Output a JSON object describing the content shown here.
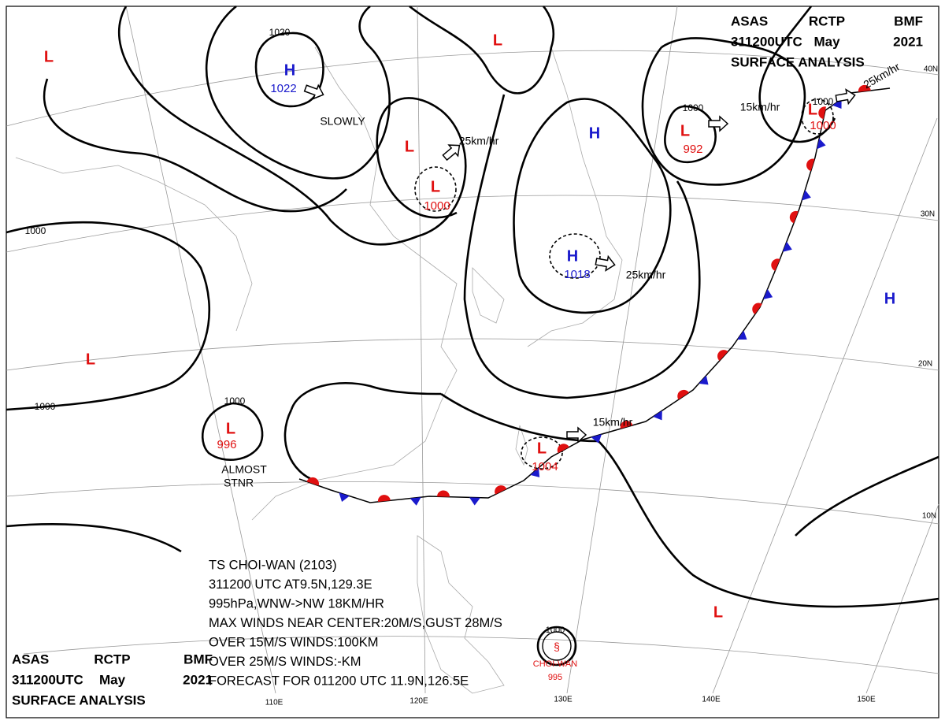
{
  "header_top": [
    [
      "ASAS",
      "RCTP",
      "BMF"
    ],
    [
      "311200UTC",
      "May",
      "2021"
    ],
    [
      "SURFACE ANALYSIS"
    ]
  ],
  "header_bottom": [
    [
      "ASAS",
      "RCTP",
      "BMF"
    ],
    [
      "311200UTC",
      "May",
      "2021"
    ],
    [
      "SURFACE ANALYSIS"
    ]
  ],
  "pressure_centers": [
    {
      "type": "H",
      "pressure": 1022
    },
    {
      "type": "L"
    },
    {
      "type": "L"
    },
    {
      "type": "L"
    },
    {
      "type": "L",
      "pressure": 1000
    },
    {
      "type": "H"
    },
    {
      "type": "H",
      "pressure": 1018
    },
    {
      "type": "L",
      "pressure": 992
    },
    {
      "type": "L",
      "pressure": 1000
    },
    {
      "type": "H"
    },
    {
      "type": "L"
    },
    {
      "type": "L",
      "pressure": 996
    },
    {
      "type": "L",
      "pressure": 1004
    },
    {
      "type": "L"
    }
  ],
  "isobar_labels": [
    1020,
    1000,
    1000,
    1000,
    1000,
    1000
  ],
  "motions": [
    "SLOWLY",
    "25km/hr",
    "25km/hr",
    "15km/hr",
    "25km/hr",
    "15km/hr",
    "ALMOST",
    "STNR"
  ],
  "typhoon": {
    "lines": [
      "TS CHOI-WAN (2103)",
      "311200 UTC AT9.5N,129.3E",
      "995hPa,WNW->NW 18KM/HR",
      "MAX WINDS NEAR CENTER:20M/S,GUST 28M/S",
      "OVER 15M/S WINDS:100KM",
      "OVER 25M/S WINDS:-KM",
      "FORECAST FOR 011200 UTC 11.9N,126.5E"
    ],
    "isobar": 1000,
    "name": "CHOI-WAN",
    "pressure": 995
  },
  "lat_labels": [
    "40N",
    "30N",
    "20N",
    "10N"
  ],
  "lon_labels": [
    "110E",
    "120E",
    "130E",
    "140E",
    "150E"
  ]
}
